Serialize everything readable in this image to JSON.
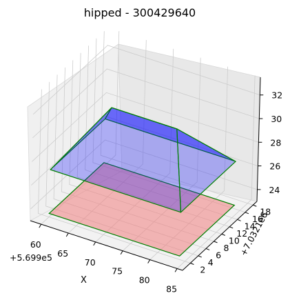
{
  "chart_data": {
    "type": "3d-polygons",
    "title": "hipped - 300429640",
    "xlabel": "X",
    "ylabel": "Y",
    "x_offset": "+5.699e5",
    "y_offset": "+7.0321e6",
    "x_ticks": [
      "60",
      "65",
      "70",
      "75",
      "80",
      "85"
    ],
    "y_ticks": [
      "2",
      "4",
      "6",
      "8",
      "10",
      "12",
      "14",
      "16",
      "18"
    ],
    "z_ticks": [
      "24",
      "26",
      "28",
      "30",
      "32"
    ],
    "xlim": [
      58,
      86
    ],
    "ylim": [
      0,
      19
    ],
    "zlim": [
      23,
      33.5
    ],
    "grid": true,
    "colors": {
      "roof_fill": "#0000ff",
      "roof_fill_opacity": 0.28,
      "roof_ridge_fill_opacity": 0.4,
      "ground_fill": "#f08080",
      "ground_fill_opacity": 0.55,
      "edge": "#008000",
      "pane": "#f2f2f2",
      "grid": "#cccccc"
    },
    "ground": {
      "z": 23.3,
      "corners": [
        [
          60,
          16
        ],
        [
          84,
          16
        ],
        [
          84,
          2
        ],
        [
          60,
          2
        ]
      ]
    },
    "roof": {
      "eaves_z": 27,
      "ridge_z": 31,
      "eaves": [
        [
          60,
          16
        ],
        [
          84,
          16
        ],
        [
          84,
          2
        ],
        [
          60,
          2
        ]
      ],
      "ridge": [
        [
          66,
          9
        ],
        [
          78,
          9
        ]
      ]
    }
  }
}
